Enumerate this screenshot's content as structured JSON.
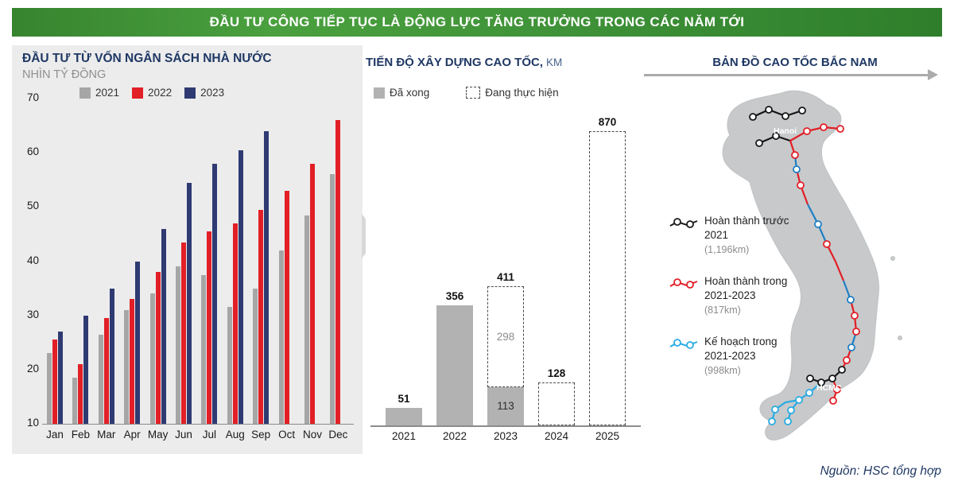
{
  "banner_title": "ĐẦU TƯ CÔNG TIẾP TỤC LÀ ĐỘNG LỰC TĂNG TRƯỞNG TRONG CÁC NĂM TỚI",
  "source": "Nguồn: HSC tổng hợp",
  "chart_data": [
    {
      "type": "bar",
      "title": "ĐẦU TƯ TỪ VỐN NGÂN SÁCH NHÀ NƯỚC",
      "subtitle": "NHÌN TỶ ĐỒNG",
      "categories": [
        "Jan",
        "Feb",
        "Mar",
        "Apr",
        "May",
        "Jun",
        "Jul",
        "Aug",
        "Sep",
        "Oct",
        "Nov",
        "Dec"
      ],
      "series": [
        {
          "name": "2021",
          "color": "#a6a6a6",
          "values": [
            23,
            18.5,
            26.5,
            31,
            34,
            39,
            37.5,
            31.5,
            35,
            42,
            48.5,
            56
          ]
        },
        {
          "name": "2022",
          "color": "#e21f26",
          "values": [
            25.5,
            21,
            29.5,
            33,
            38,
            43.5,
            45.5,
            47,
            49.5,
            53,
            58,
            66
          ]
        },
        {
          "name": "2023",
          "color": "#2f3a72",
          "values": [
            27,
            30,
            35,
            40,
            46,
            54.5,
            58,
            60.5,
            64,
            null,
            null,
            null
          ]
        }
      ],
      "ylim": [
        10,
        70
      ],
      "yticks": [
        70,
        60,
        50,
        40,
        30,
        20,
        10
      ],
      "grid": false,
      "legend_position": "top"
    },
    {
      "type": "bar",
      "title": "TIẾN ĐỘ XÂY DỰNG CAO TỐC,",
      "title_unit": "KM",
      "categories": [
        "2021",
        "2022",
        "2023",
        "2024",
        "2025"
      ],
      "series": [
        {
          "name": "Đã xong",
          "style": "solid",
          "color": "#b2b2b2",
          "values": [
            51,
            356,
            113,
            0,
            0
          ]
        },
        {
          "name": "Đang thực hiện",
          "style": "dashed",
          "color": "#4a4a4a",
          "values": [
            0,
            0,
            298,
            128,
            870
          ]
        }
      ],
      "total_labels": [
        51,
        356,
        411,
        128,
        870
      ],
      "segment_labels": {
        "done_2023": 113,
        "in_progress_2023": 298
      },
      "ylim": [
        0,
        870
      ],
      "grid": false
    }
  ],
  "map_panel": {
    "title": "BẢN ĐỒ CAO TỐC BẮC NAM",
    "cities": [
      "Hanoi",
      "HCMC"
    ],
    "legend": [
      {
        "label": "Hoàn thành trước 2021",
        "km": "(1,196km)",
        "color": "#1a1a1a"
      },
      {
        "label": "Hoàn thành trong 2021-2023",
        "km": "(817km)",
        "color": "#e21f26"
      },
      {
        "label": "Kế hoạch trong 2021-2023",
        "km": "(998km)",
        "color": "#29abe2"
      }
    ]
  }
}
